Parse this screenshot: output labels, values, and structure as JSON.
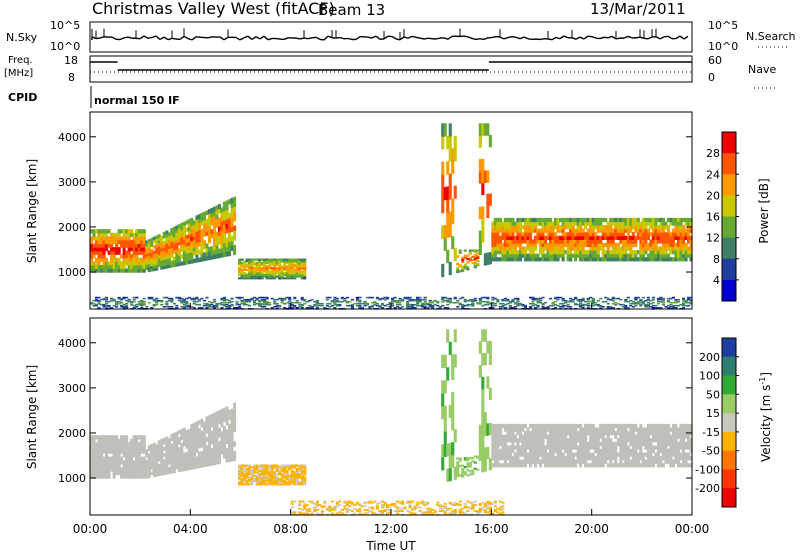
{
  "header": {
    "station_title": "Christmas Valley West (fitACF)",
    "beam": "Beam 13",
    "date": "13/Mar/2011"
  },
  "mini_panels": {
    "nsky_label": "N.Sky",
    "nsky_tick_top": "10^5",
    "nsky_tick_bottom": "10^0",
    "nsearch_label": "N.Search",
    "nsearch_tick_top": "10^5",
    "nsearch_tick_bottom": "10^0",
    "freq_label": "Freq.",
    "freq_unit": "[MHz]",
    "freq_tick_top": "18",
    "freq_tick_bottom": "8",
    "nave_label": "Nave",
    "nave_tick_top": "60",
    "nave_tick_bottom": "0",
    "cpid_label": "CPID",
    "cpid_value": "normal 150 IF"
  },
  "chart_data": [
    {
      "type": "heatmap",
      "panel": "power",
      "ylabel": "Slant Range [km]",
      "xlabel": "",
      "x_ticks": [
        "00:00",
        "04:00",
        "08:00",
        "12:00",
        "16:00",
        "20:00",
        "00:00"
      ],
      "x_range_hours": [
        0,
        24
      ],
      "y_ticks": [
        "1000",
        "2000",
        "3000",
        "4000"
      ],
      "y_range_km": [
        180,
        4550
      ],
      "colorbar": {
        "label": "Power [dB]",
        "ticks": [
          "4",
          "8",
          "12",
          "16",
          "20",
          "24",
          "28"
        ],
        "range": [
          0,
          32
        ],
        "colors": [
          "#0000cc",
          "#1f3f9f",
          "#3f7f66",
          "#66aa33",
          "#c8c800",
          "#ff9900",
          "#ff5500",
          "#ee0000"
        ]
      },
      "features": [
        {
          "region": "morning band",
          "start_h": 0.0,
          "end_h": 2.2,
          "range_km": [
            1000,
            1950
          ],
          "peak_power_db": 30
        },
        {
          "region": "rising band",
          "start_h": 2.2,
          "end_h": 5.8,
          "range_km": [
            1200,
            2700
          ],
          "peak_power_db": 26
        },
        {
          "region": "mid-day patch",
          "start_h": 5.9,
          "end_h": 8.6,
          "range_km": [
            850,
            1300
          ],
          "peak_power_db": 24
        },
        {
          "region": "near-range echoes",
          "start_h": 0.0,
          "end_h": 24.0,
          "range_km": [
            180,
            450
          ],
          "peak_power_db": 12
        },
        {
          "region": "afternoon burst",
          "start_h": 14.0,
          "end_h": 16.0,
          "range_km": [
            900,
            4300
          ],
          "peak_power_db": 28
        },
        {
          "region": "evening band",
          "start_h": 16.0,
          "end_h": 24.0,
          "range_km": [
            1250,
            2200
          ],
          "peak_power_db": 28
        }
      ]
    },
    {
      "type": "heatmap",
      "panel": "velocity",
      "ylabel": "Slant Range [km]",
      "xlabel": "Time UT",
      "x_ticks": [
        "00:00",
        "04:00",
        "08:00",
        "12:00",
        "16:00",
        "20:00",
        "00:00"
      ],
      "x_range_hours": [
        0,
        24
      ],
      "y_ticks": [
        "1000",
        "2000",
        "3000",
        "4000"
      ],
      "y_range_km": [
        180,
        4550
      ],
      "colorbar": {
        "label": "Velocity [m s",
        "label_superscript": "-1",
        "label_close": "]",
        "ticks": [
          "200",
          "100",
          "50",
          "15",
          "-15",
          "-50",
          "-100",
          "-200"
        ],
        "range": [
          -250,
          250
        ],
        "colors": [
          "#1f3fa0",
          "#2f7f70",
          "#33aa33",
          "#99cc66",
          "#c8c8c0",
          "#ffb300",
          "#ff7700",
          "#ff3300",
          "#ee0000"
        ]
      },
      "features": [
        {
          "region": "morning band",
          "start_h": 0.0,
          "end_h": 2.2,
          "range_km": [
            1000,
            1950
          ],
          "velocity_ms": 0,
          "class": "ground scatter"
        },
        {
          "region": "rising band",
          "start_h": 2.2,
          "end_h": 5.8,
          "range_km": [
            1200,
            2700
          ],
          "velocity_ms": 0,
          "class": "ground scatter"
        },
        {
          "region": "mid-day patch",
          "start_h": 5.9,
          "end_h": 8.6,
          "range_km": [
            850,
            1300
          ],
          "velocity_ms": -40
        },
        {
          "region": "near-range echoes",
          "start_h": 8.0,
          "end_h": 16.5,
          "range_km": [
            180,
            500
          ],
          "velocity_ms": -40
        },
        {
          "region": "afternoon burst",
          "start_h": 14.0,
          "end_h": 16.0,
          "range_km": [
            900,
            4300
          ],
          "velocity_ms": 60
        },
        {
          "region": "evening band",
          "start_h": 16.0,
          "end_h": 24.0,
          "range_km": [
            1250,
            2200
          ],
          "velocity_ms": 0,
          "class": "ground scatter"
        }
      ]
    }
  ]
}
